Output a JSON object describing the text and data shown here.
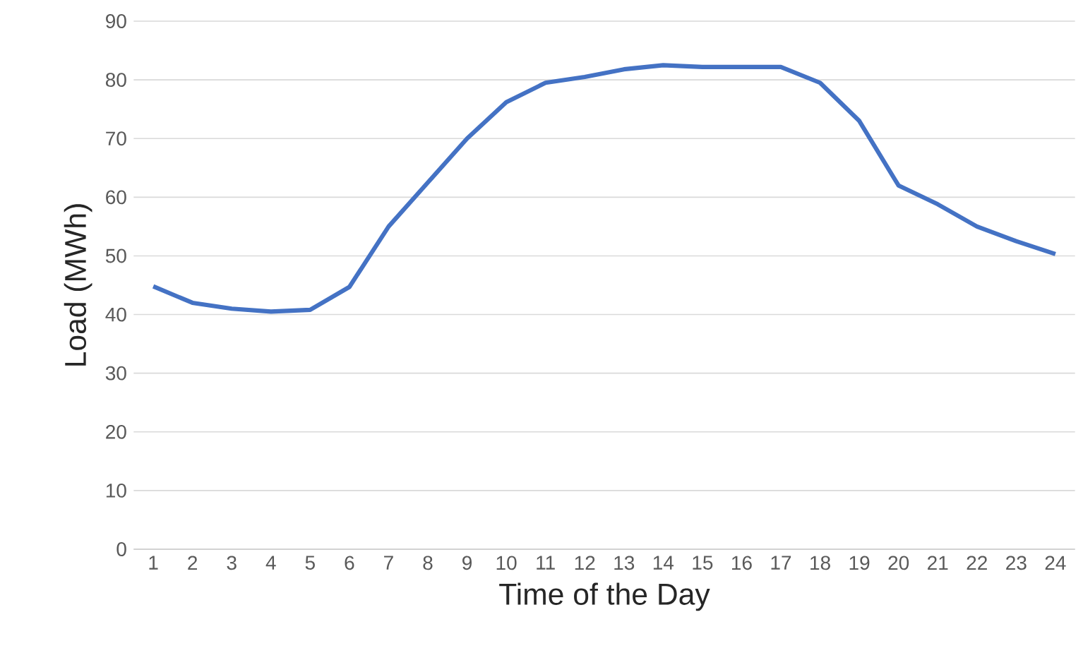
{
  "chart_data": {
    "type": "line",
    "xlabel": "Time of the Day",
    "ylabel": "Load (MWh)",
    "categories": [
      "1",
      "2",
      "3",
      "4",
      "5",
      "6",
      "7",
      "8",
      "9",
      "10",
      "11",
      "12",
      "13",
      "14",
      "15",
      "16",
      "17",
      "18",
      "19",
      "20",
      "21",
      "22",
      "23",
      "24"
    ],
    "series": [
      {
        "color": "#4472c4",
        "values": [
          44.8,
          42,
          41,
          40.5,
          40.8,
          44.7,
          55,
          62.5,
          70,
          76.2,
          79.5,
          80.5,
          81.8,
          82.5,
          82.2,
          82.2,
          82.2,
          79.5,
          73,
          62,
          58.8,
          55,
          52.5,
          50.3
        ]
      }
    ],
    "ylim": [
      0,
      90
    ],
    "yticks": [
      0,
      10,
      20,
      30,
      40,
      50,
      60,
      70,
      80,
      90
    ],
    "grid": "y",
    "marker": "none",
    "line_style": "solid"
  }
}
